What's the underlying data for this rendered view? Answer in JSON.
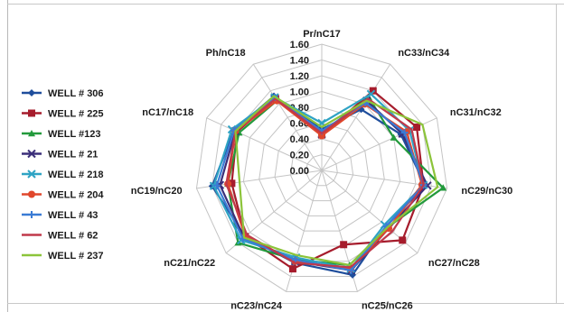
{
  "chart_data": {
    "type": "radar",
    "axes": [
      "Pr/nC17",
      "nC33/nC34",
      "nC31/nC32",
      "nC29/nC30",
      "nC27/nC28",
      "nC25/nC26",
      "nC23/nC24",
      "nC21/nC22",
      "nC19/nC20",
      "nC17/nC18",
      "Ph/nC18"
    ],
    "ticks": [
      "0.00",
      "0.20",
      "0.40",
      "0.60",
      "0.80",
      "1.00",
      "1.20",
      "1.40",
      "1.60"
    ],
    "rmax": 1.6,
    "grid": true,
    "legend_position": "left",
    "series": [
      {
        "name": "WELL # 306",
        "color": "#1f4e9c",
        "marker": "diamond",
        "values": [
          0.52,
          0.92,
          1.1,
          1.32,
          1.08,
          1.38,
          1.22,
          1.28,
          1.4,
          1.22,
          1.12
        ]
      },
      {
        "name": "WELL # 225",
        "color": "#a61c2c",
        "marker": "square",
        "values": [
          0.45,
          1.2,
          1.32,
          1.3,
          1.35,
          0.98,
          1.3,
          1.28,
          1.15,
          1.18,
          1.08
        ]
      },
      {
        "name": "WELL #123",
        "color": "#239a3c",
        "marker": "triangle",
        "values": [
          0.48,
          1.1,
          1.0,
          1.55,
          1.1,
          1.25,
          1.18,
          1.4,
          1.2,
          1.15,
          1.05
        ]
      },
      {
        "name": "WELL # 21",
        "color": "#3b2f7a",
        "marker": "x",
        "values": [
          0.46,
          1.05,
          1.12,
          1.35,
          1.12,
          1.32,
          1.2,
          1.3,
          1.3,
          1.2,
          1.1
        ]
      },
      {
        "name": "WELL # 218",
        "color": "#2ea3c4",
        "marker": "x",
        "values": [
          0.6,
          1.15,
          1.22,
          1.3,
          1.05,
          1.3,
          1.15,
          1.35,
          1.38,
          1.25,
          1.1
        ]
      },
      {
        "name": "WELL # 204",
        "color": "#e0472c",
        "marker": "circle",
        "values": [
          0.44,
          1.0,
          1.18,
          1.28,
          1.12,
          1.3,
          1.2,
          1.28,
          1.2,
          1.2,
          1.05
        ]
      },
      {
        "name": "WELL # 43",
        "color": "#3a7bd5",
        "marker": "plus",
        "values": [
          0.5,
          1.02,
          1.15,
          1.3,
          1.08,
          1.32,
          1.18,
          1.32,
          1.34,
          1.22,
          1.1
        ]
      },
      {
        "name": "WELL # 62",
        "color": "#c0394a",
        "marker": "none",
        "values": [
          0.47,
          1.08,
          1.25,
          1.3,
          1.18,
          1.28,
          1.22,
          1.25,
          1.22,
          1.2,
          1.08
        ]
      },
      {
        "name": "WELL # 237",
        "color": "#8cc43a",
        "marker": "none",
        "values": [
          0.55,
          1.05,
          1.4,
          1.48,
          1.1,
          1.25,
          1.12,
          1.3,
          1.05,
          1.2,
          1.12
        ]
      }
    ]
  }
}
